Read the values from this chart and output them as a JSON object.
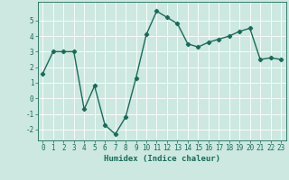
{
  "x": [
    0,
    1,
    2,
    3,
    4,
    5,
    6,
    7,
    8,
    9,
    10,
    11,
    12,
    13,
    14,
    15,
    16,
    17,
    18,
    19,
    20,
    21,
    22,
    23
  ],
  "y": [
    1.6,
    3.0,
    3.0,
    3.0,
    -0.7,
    0.8,
    -1.7,
    -2.3,
    -1.2,
    1.3,
    4.1,
    5.6,
    5.2,
    4.8,
    3.5,
    3.3,
    3.6,
    3.8,
    4.0,
    4.3,
    4.5,
    2.5,
    2.6,
    2.5
  ],
  "line_color": "#1a6b5a",
  "marker": "D",
  "markersize": 2.2,
  "linewidth": 1.0,
  "xlabel": "Humidex (Indice chaleur)",
  "xlim": [
    -0.5,
    23.5
  ],
  "ylim": [
    -2.7,
    6.2
  ],
  "yticks": [
    -2,
    -1,
    0,
    1,
    2,
    3,
    4,
    5
  ],
  "xticks": [
    0,
    1,
    2,
    3,
    4,
    5,
    6,
    7,
    8,
    9,
    10,
    11,
    12,
    13,
    14,
    15,
    16,
    17,
    18,
    19,
    20,
    21,
    22,
    23
  ],
  "bg_color": "#cce8e0",
  "grid_color": "#ffffff",
  "tick_color": "#1a6b5a",
  "label_color": "#1a6b5a",
  "xlabel_fontsize": 6.5,
  "tick_fontsize": 5.5
}
